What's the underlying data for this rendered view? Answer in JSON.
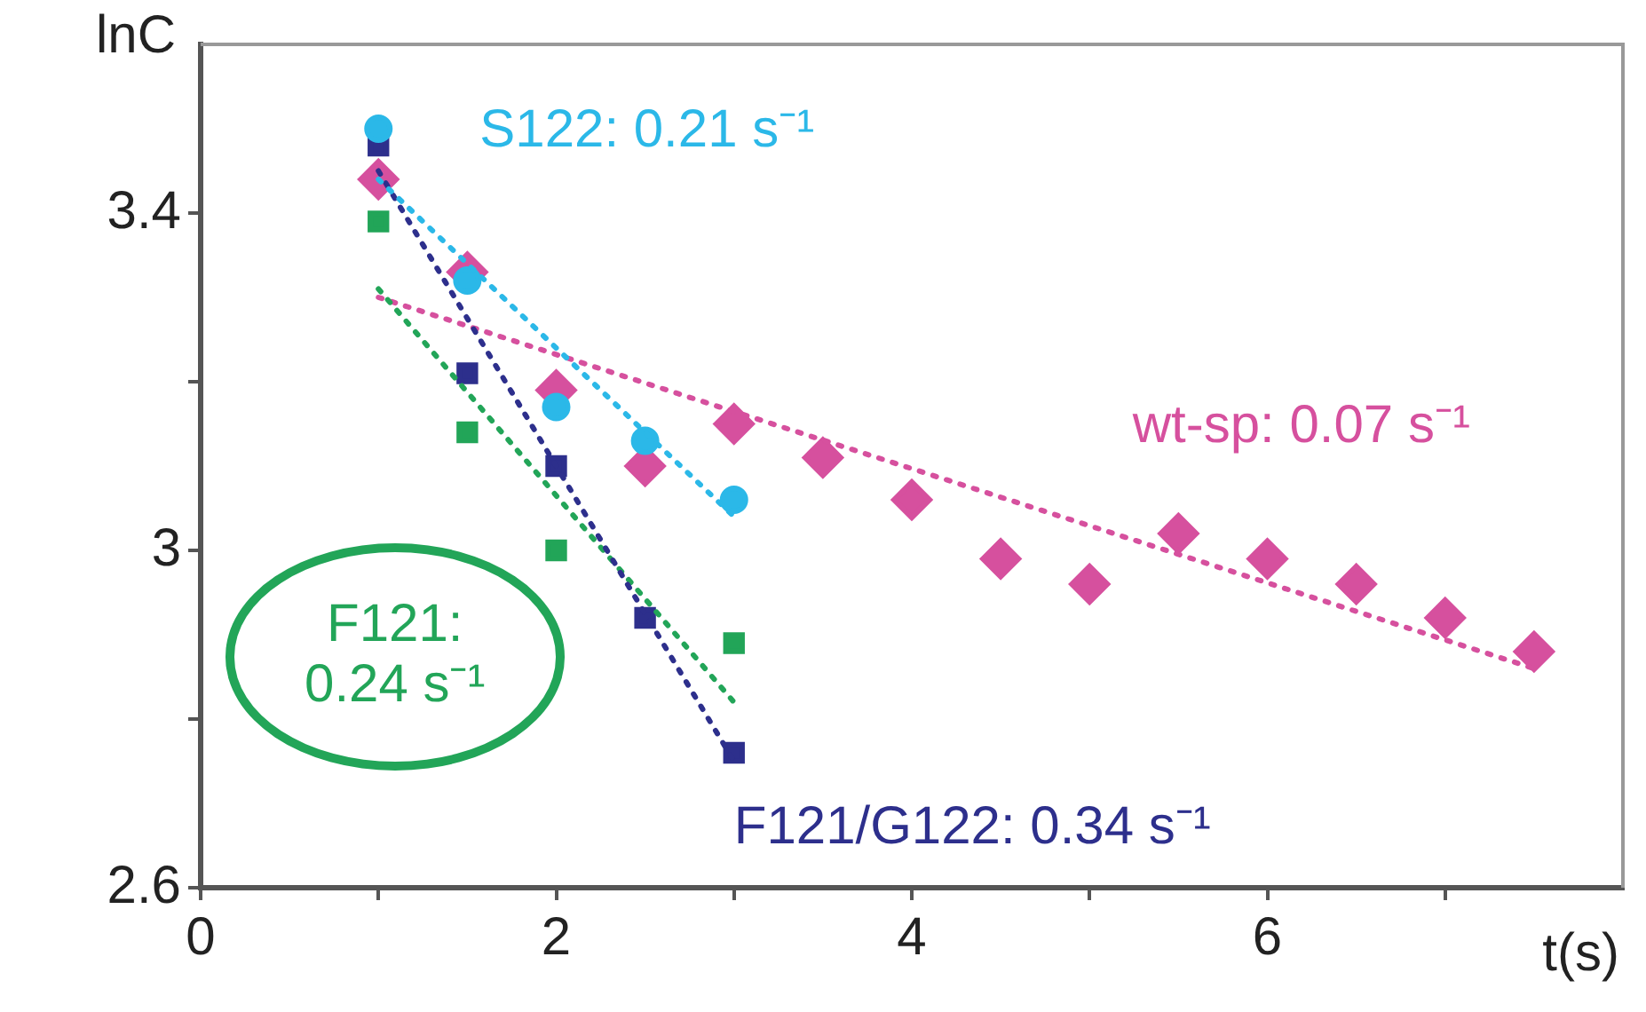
{
  "chart_data": {
    "type": "scatter",
    "xlabel": "t(s)",
    "ylabel": "lnC",
    "xlim": [
      0,
      8
    ],
    "xticks": [
      0,
      {
        "value": 1,
        "label": null
      },
      2,
      {
        "value": 3,
        "label": null
      },
      4,
      {
        "value": 5,
        "label": null
      },
      6,
      {
        "value": 7,
        "label": null
      }
    ],
    "ylim": [
      2.6,
      3.6
    ],
    "yticks": [
      2.6,
      {
        "value": 2.8,
        "label": null
      },
      3.0,
      {
        "value": 3.2,
        "label": null
      },
      3.4
    ],
    "grid": false,
    "legend": false,
    "series": [
      {
        "type": "scatter",
        "marker": "circle",
        "color": "#2bb8e8",
        "x": [
          1,
          1.5,
          2,
          2.5,
          3
        ],
        "values": [
          3.5,
          3.32,
          3.17,
          3.13,
          3.06
        ]
      },
      {
        "type": "scatter",
        "marker": "square",
        "color": "#2d2f8c",
        "x": [
          1,
          1.5,
          2,
          2.5,
          3
        ],
        "values": [
          3.48,
          3.21,
          3.1,
          2.92,
          2.76
        ]
      },
      {
        "type": "scatter",
        "marker": "square",
        "color": "#22a558",
        "x": [
          1,
          1.5,
          2,
          3
        ],
        "values": [
          3.39,
          3.14,
          3.0,
          2.89
        ]
      },
      {
        "type": "scatter",
        "marker": "diamond",
        "color": "#d6509e",
        "x": [
          1,
          1.5,
          2,
          2.5,
          3,
          3.5,
          4,
          4.5,
          5,
          5.5,
          6,
          6.5,
          7,
          7.5
        ],
        "values": [
          3.44,
          3.33,
          3.19,
          3.1,
          3.15,
          3.11,
          3.06,
          2.99,
          2.96,
          3.02,
          2.99,
          2.96,
          2.92,
          2.88
        ]
      },
      {
        "type": "line",
        "name": "S122: 0.21 s⁻¹",
        "marker": "none",
        "line_style": "dotted",
        "color": "#2bb8e8",
        "x": [
          1,
          3
        ],
        "values": [
          3.44,
          3.04
        ]
      },
      {
        "type": "line",
        "name": "F121/G122: 0.34 s⁻¹",
        "marker": "none",
        "line_style": "dotted",
        "color": "#2d2f8c",
        "x": [
          1,
          3
        ],
        "values": [
          3.45,
          2.75
        ]
      },
      {
        "type": "line",
        "name": "F121: 0.24 s⁻¹",
        "marker": "none",
        "line_style": "dotted",
        "color": "#22a558",
        "x": [
          1,
          3
        ],
        "values": [
          3.31,
          2.82
        ]
      },
      {
        "type": "line",
        "name": "wt-sp: 0.07 s⁻¹",
        "marker": "none",
        "line_style": "dotted",
        "color": "#d6509e",
        "x": [
          1,
          7.5
        ],
        "values": [
          3.3,
          2.86
        ]
      }
    ]
  }
}
